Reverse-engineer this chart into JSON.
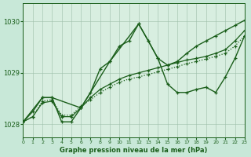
{
  "background_color": "#c8e8d8",
  "plot_bg_color": "#d8eee0",
  "grid_color": "#9dbfaa",
  "line_color": "#1a5e1a",
  "line_color2": "#2a7a2a",
  "title": "Graphe pression niveau de la mer (hPa)",
  "xlim": [
    0,
    23
  ],
  "ylim": [
    1027.75,
    1030.35
  ],
  "yticks": [
    1028,
    1029,
    1030
  ],
  "xticks": [
    0,
    1,
    2,
    3,
    4,
    5,
    6,
    7,
    8,
    9,
    10,
    11,
    12,
    13,
    14,
    15,
    16,
    17,
    18,
    19,
    20,
    21,
    22,
    23
  ],
  "series": [
    {
      "x": [
        0,
        1,
        2,
        3,
        4,
        5,
        6,
        7,
        8,
        9,
        10,
        11,
        12,
        13,
        14,
        15,
        16,
        17,
        18,
        19,
        20,
        21,
        22,
        23
      ],
      "y": [
        1028.05,
        1028.15,
        1028.45,
        1028.48,
        1028.18,
        1028.18,
        1028.35,
        1028.48,
        1028.62,
        1028.72,
        1028.82,
        1028.88,
        1028.92,
        1028.97,
        1029.02,
        1029.07,
        1029.12,
        1029.18,
        1029.22,
        1029.27,
        1029.32,
        1029.38,
        1029.52,
        1029.72
      ],
      "style": "dotted",
      "lw": 0.9,
      "marker": "+"
    },
    {
      "x": [
        0,
        1,
        2,
        3,
        4,
        5,
        6,
        7,
        8,
        9,
        10,
        11,
        12,
        13,
        14,
        15,
        16,
        17,
        18,
        19,
        20,
        21,
        22,
        23
      ],
      "y": [
        1028.05,
        1028.15,
        1028.42,
        1028.45,
        1028.15,
        1028.15,
        1028.32,
        1028.52,
        1028.68,
        1028.78,
        1028.88,
        1028.95,
        1029.0,
        1029.05,
        1029.1,
        1029.15,
        1029.2,
        1029.25,
        1029.28,
        1029.32,
        1029.38,
        1029.45,
        1029.62,
        1029.82
      ],
      "style": "solid",
      "lw": 0.9,
      "marker": "+"
    },
    {
      "x": [
        0,
        1,
        2,
        3,
        4,
        5,
        6,
        7,
        8,
        9,
        10,
        11,
        12,
        13,
        14,
        15,
        16,
        17,
        18,
        19,
        20,
        21,
        22,
        23
      ],
      "y": [
        1028.05,
        1028.25,
        1028.52,
        1028.52,
        1028.05,
        1028.05,
        1028.32,
        1028.62,
        1029.08,
        1029.22,
        1029.52,
        1029.62,
        1029.95,
        1029.62,
        1029.28,
        1028.78,
        1028.62,
        1028.62,
        1028.68,
        1028.72,
        1028.62,
        1028.92,
        1029.28,
        1029.72
      ],
      "style": "solid",
      "lw": 1.0,
      "marker": "+"
    },
    {
      "x": [
        0,
        2,
        3,
        6,
        9,
        12,
        13,
        14,
        15,
        16,
        17,
        18,
        19,
        20,
        21,
        22,
        23
      ],
      "y": [
        1028.05,
        1028.52,
        1028.52,
        1028.32,
        1029.22,
        1029.95,
        1029.62,
        1029.28,
        1029.15,
        1029.22,
        1029.38,
        1029.52,
        1029.62,
        1029.72,
        1029.82,
        1029.92,
        1030.02
      ],
      "style": "solid",
      "lw": 1.0,
      "marker": "+"
    }
  ]
}
